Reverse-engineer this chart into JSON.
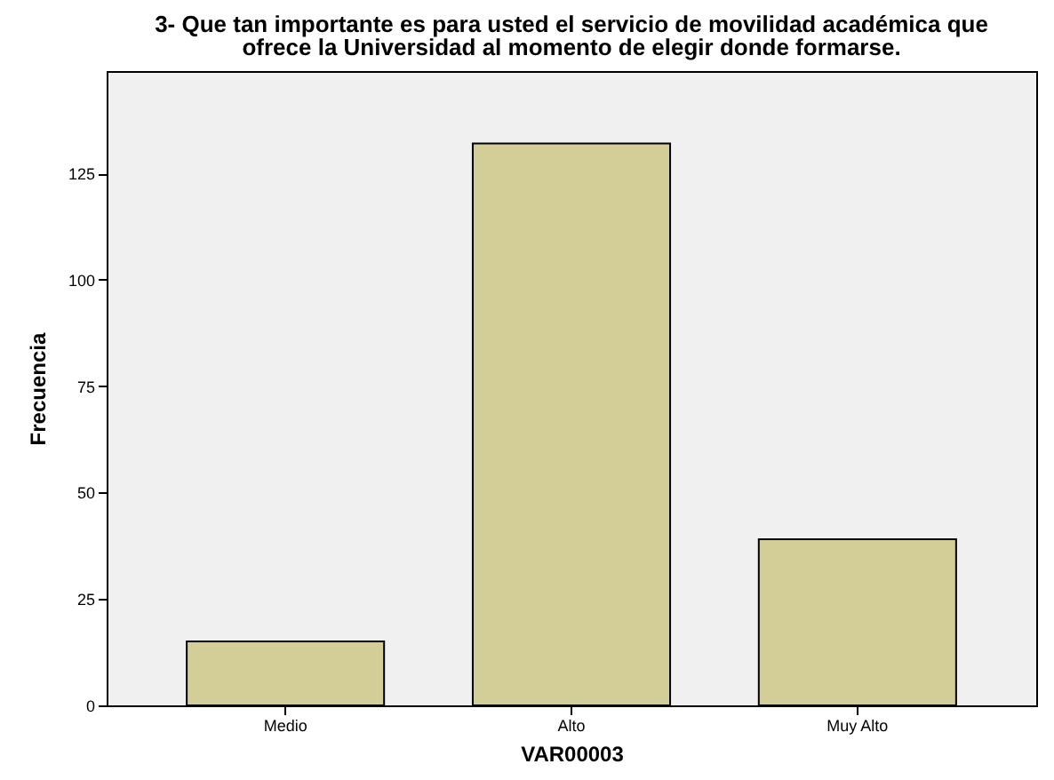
{
  "chart_data": {
    "type": "bar",
    "title": "3- Que tan importante es para usted el servicio de movilidad académica que ofrece la Universidad al momento de elegir donde formarse.",
    "xlabel": "VAR00003",
    "ylabel": "Frecuencia",
    "categories": [
      "Medio",
      "Alto",
      "Muy Alto"
    ],
    "values": [
      15,
      132,
      39
    ],
    "color": "#d3ce97",
    "ylim": [
      0,
      149
    ],
    "yticks": [
      0,
      25,
      50,
      75,
      100,
      125
    ],
    "grid": false
  }
}
